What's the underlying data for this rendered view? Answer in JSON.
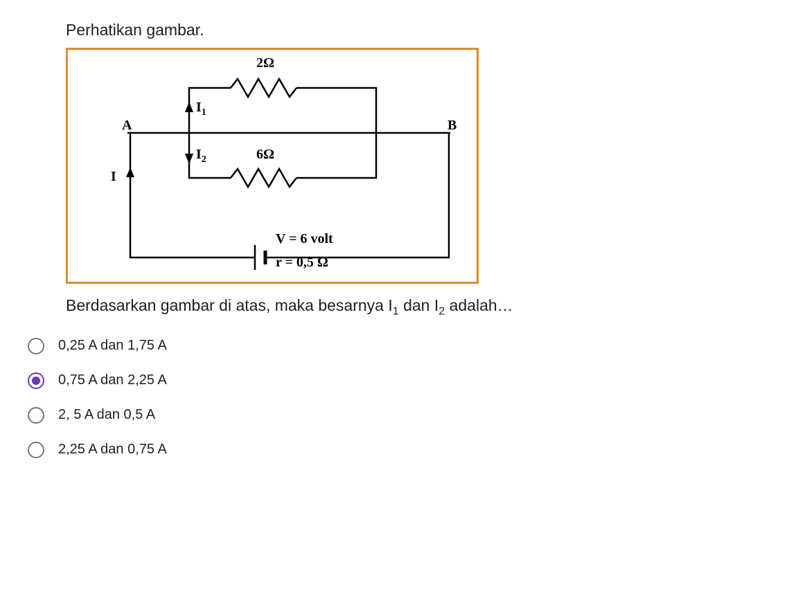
{
  "question": {
    "prompt": "Perhatikan gambar.",
    "follow_text_prefix": "Berdasarkan gambar di atas, maka besarnya I",
    "follow_text_mid": " dan I",
    "follow_text_suffix": " adalah…",
    "sub1": "1",
    "sub2": "2"
  },
  "diagram": {
    "border_color": "#e08a2e",
    "stroke": "#000000",
    "resistor_top": "2Ω",
    "resistor_bottom": "6Ω",
    "label_A": "A",
    "label_B": "B",
    "label_I": "I",
    "label_I1": "I",
    "label_I1_sub": "1",
    "label_I2": "I",
    "label_I2_sub": "2",
    "voltage": "V = 6 volt",
    "internal_r": "r = 0,5 Ω"
  },
  "options": [
    {
      "label": "0,25 A dan 1,75 A",
      "selected": false
    },
    {
      "label": "0,75 A dan 2,25 A",
      "selected": true
    },
    {
      "label": "2, 5 A dan 0,5 A",
      "selected": false
    },
    {
      "label": "2,25 A dan 0,75 A",
      "selected": false
    }
  ],
  "styles": {
    "selected_color": "#673ab7",
    "unselected_color": "#777777",
    "text_color": "#1f1f1f",
    "background": "#ffffff",
    "font_size_prompt": 23,
    "font_size_option": 20
  }
}
